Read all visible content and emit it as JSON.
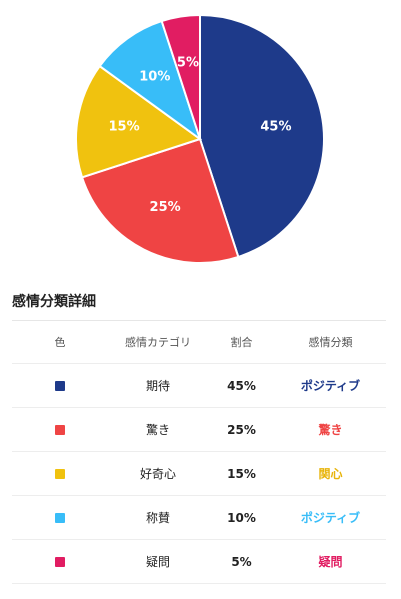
{
  "chart_data": {
    "type": "pie",
    "title": "",
    "slices": [
      {
        "label": "期待",
        "value": 45,
        "display": "45%",
        "color": "#1e3a8a"
      },
      {
        "label": "驚き",
        "value": 25,
        "display": "25%",
        "color": "#ef4444"
      },
      {
        "label": "好奇心",
        "value": 15,
        "display": "15%",
        "color": "#f0c20f"
      },
      {
        "label": "称賛",
        "value": 10,
        "display": "10%",
        "color": "#38bdf8"
      },
      {
        "label": "疑問",
        "value": 5,
        "display": "5%",
        "color": "#e11d62"
      }
    ]
  },
  "details": {
    "title": "感情分類詳細",
    "headers": {
      "color": "色",
      "category": "感情カテゴリ",
      "ratio": "割合",
      "classification": "感情分類"
    },
    "rows": [
      {
        "category": "期待",
        "ratio": "45%",
        "classification": "ポジティブ",
        "swatch_color": "#1e3a8a",
        "class_color": "#1e3a8a"
      },
      {
        "category": "驚き",
        "ratio": "25%",
        "classification": "驚き",
        "swatch_color": "#ef4444",
        "class_color": "#ef4444"
      },
      {
        "category": "好奇心",
        "ratio": "15%",
        "classification": "関心",
        "swatch_color": "#f0c20f",
        "class_color": "#e8b40a"
      },
      {
        "category": "称賛",
        "ratio": "10%",
        "classification": "ポジティブ",
        "swatch_color": "#38bdf8",
        "class_color": "#38bdf8"
      },
      {
        "category": "疑問",
        "ratio": "5%",
        "classification": "疑問",
        "swatch_color": "#e11d62",
        "class_color": "#e11d62"
      }
    ]
  }
}
